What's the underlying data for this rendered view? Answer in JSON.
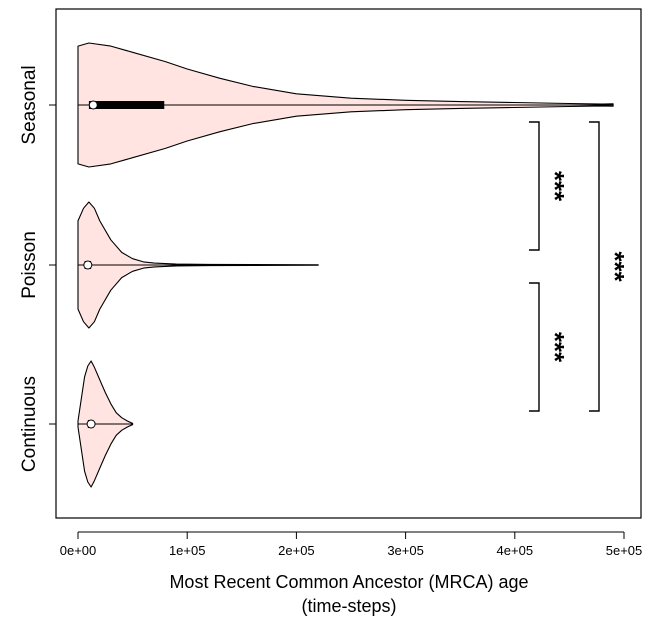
{
  "chart_data": {
    "type": "violin",
    "orientation": "horizontal",
    "xlabel_line1": "Most Recent Common Ancestor (MRCA) age",
    "xlabel_line2": "(time-steps)",
    "xlim": [
      -10000,
      500000
    ],
    "xticks": [
      0,
      100000,
      200000,
      300000,
      400000,
      500000
    ],
    "xtick_labels": [
      "0e+00",
      "1e+05",
      "2e+05",
      "3e+05",
      "4e+05",
      "5e+05"
    ],
    "categories": [
      "Continuous",
      "Poisson",
      "Seasonal"
    ],
    "fill_color": "#ffe4e1",
    "series": [
      {
        "name": "Continuous",
        "min": 0,
        "q1": 9000,
        "median": 12000,
        "q3": 14000,
        "max": 50000,
        "density": [
          [
            0,
            0.05
          ],
          [
            3000,
            0.4
          ],
          [
            6000,
            0.75
          ],
          [
            9000,
            0.92
          ],
          [
            12000,
            1.0
          ],
          [
            15000,
            0.9
          ],
          [
            20000,
            0.7
          ],
          [
            25000,
            0.5
          ],
          [
            30000,
            0.32
          ],
          [
            35000,
            0.18
          ],
          [
            40000,
            0.1
          ],
          [
            45000,
            0.05
          ],
          [
            50000,
            0.01
          ]
        ]
      },
      {
        "name": "Poisson",
        "min": 0,
        "q1": 6000,
        "median": 9000,
        "q3": 12000,
        "max": 220000,
        "density": [
          [
            0,
            0.7
          ],
          [
            5000,
            0.9
          ],
          [
            10000,
            1.0
          ],
          [
            15000,
            0.9
          ],
          [
            20000,
            0.7
          ],
          [
            30000,
            0.4
          ],
          [
            40000,
            0.2
          ],
          [
            50000,
            0.1
          ],
          [
            60000,
            0.05
          ],
          [
            70000,
            0.03
          ],
          [
            90000,
            0.015
          ],
          [
            120000,
            0.01
          ],
          [
            160000,
            0.006
          ],
          [
            220000,
            0.003
          ]
        ]
      },
      {
        "name": "Seasonal",
        "min": 0,
        "q1": 10000,
        "median": 14000,
        "q3": 79000,
        "max": 490000,
        "density": [
          [
            0,
            0.95
          ],
          [
            10000,
            1.0
          ],
          [
            30000,
            0.95
          ],
          [
            50000,
            0.85
          ],
          [
            80000,
            0.7
          ],
          [
            100000,
            0.58
          ],
          [
            130000,
            0.43
          ],
          [
            160000,
            0.3
          ],
          [
            200000,
            0.18
          ],
          [
            250000,
            0.11
          ],
          [
            300000,
            0.075
          ],
          [
            350000,
            0.055
          ],
          [
            400000,
            0.04
          ],
          [
            450000,
            0.025
          ],
          [
            480000,
            0.015
          ],
          [
            490000,
            0.02
          ]
        ]
      }
    ],
    "significance": [
      {
        "from": "Poisson",
        "to": "Seasonal",
        "label": "***"
      },
      {
        "from": "Continuous",
        "to": "Poisson",
        "label": "***"
      },
      {
        "from": "Continuous",
        "to": "Seasonal",
        "label": "***"
      }
    ]
  }
}
